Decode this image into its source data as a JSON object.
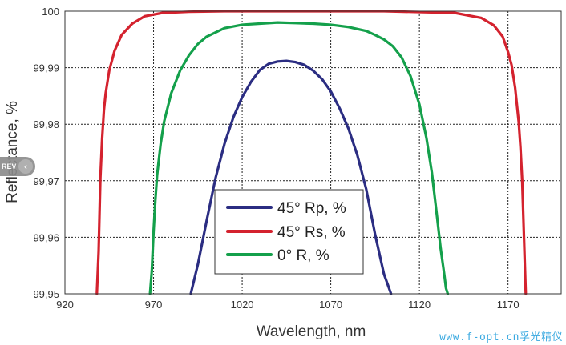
{
  "chart_data": {
    "type": "line",
    "title": "",
    "xlabel": "Wavelength, nm",
    "ylabel": "Reflectance, %",
    "xlim": [
      920,
      1200
    ],
    "ylim": [
      99.95,
      100.0
    ],
    "xticks": [
      920,
      970,
      1020,
      1070,
      1120,
      1170
    ],
    "xtick_labels": [
      "920",
      "970",
      "1020",
      "1070",
      "1120",
      "1170"
    ],
    "yticks": [
      99.95,
      99.96,
      99.97,
      99.98,
      99.99,
      100.0
    ],
    "ytick_labels": [
      "99,95",
      "99,96",
      "99,97",
      "99,98",
      "99,99",
      "100"
    ],
    "grid": true,
    "legend_position": "bottom-center",
    "series": [
      {
        "name": "45° Rp, %",
        "color": "#2b2d82",
        "x": [
          991,
          995,
          1000,
          1005,
          1010,
          1015,
          1020,
          1025,
          1030,
          1035,
          1040,
          1045,
          1050,
          1055,
          1060,
          1065,
          1070,
          1075,
          1080,
          1085,
          1090,
          1095,
          1100,
          1104
        ],
        "y": [
          99.95,
          99.9552,
          99.963,
          99.9705,
          99.9765,
          99.9812,
          99.9848,
          99.9875,
          99.9896,
          99.9907,
          99.9911,
          99.9912,
          99.991,
          99.9905,
          99.9895,
          99.988,
          99.9858,
          99.9828,
          99.9792,
          99.9745,
          99.9685,
          99.9605,
          99.9535,
          99.95
        ]
      },
      {
        "name": "45° Rs, %",
        "color": "#d4222e",
        "x": [
          938,
          939,
          940,
          941,
          942,
          943,
          945,
          948,
          952,
          958,
          965,
          975,
          990,
          1010,
          1050,
          1100,
          1140,
          1155,
          1162,
          1167,
          1170,
          1172,
          1174,
          1176,
          1177,
          1178,
          1179,
          1180
        ],
        "y": [
          99.95,
          99.9575,
          99.9705,
          99.9775,
          99.9825,
          99.9855,
          99.9895,
          99.993,
          99.9958,
          99.9978,
          99.9991,
          99.9997,
          99.9999,
          100.0,
          100.0,
          100.0,
          99.9997,
          99.9988,
          99.9975,
          99.9955,
          99.9928,
          99.9905,
          99.9865,
          99.9805,
          99.976,
          99.97,
          99.96,
          99.95
        ]
      },
      {
        "name": "0° R, %",
        "color": "#14a04b",
        "x": [
          968,
          969,
          970,
          971,
          972,
          974,
          976,
          980,
          985,
          990,
          995,
          1000,
          1010,
          1020,
          1030,
          1040,
          1050,
          1060,
          1070,
          1080,
          1090,
          1095,
          1100,
          1105,
          1110,
          1115,
          1120,
          1124,
          1127,
          1130,
          1132,
          1134,
          1135,
          1136
        ],
        "y": [
          99.95,
          99.954,
          99.961,
          99.9665,
          99.971,
          99.9765,
          99.9805,
          99.9855,
          99.9895,
          99.9922,
          99.9942,
          99.9955,
          99.997,
          99.9976,
          99.9978,
          99.998,
          99.9979,
          99.9978,
          99.9976,
          99.9972,
          99.9965,
          99.9958,
          99.995,
          99.9938,
          99.9918,
          99.9885,
          99.9835,
          99.9775,
          99.9715,
          99.9635,
          99.958,
          99.9535,
          99.951,
          99.95
        ]
      }
    ]
  },
  "overlay": {
    "rev_label": "REV",
    "rev_chevron": "‹",
    "watermark": "www.f-opt.cn孚光精仪"
  }
}
